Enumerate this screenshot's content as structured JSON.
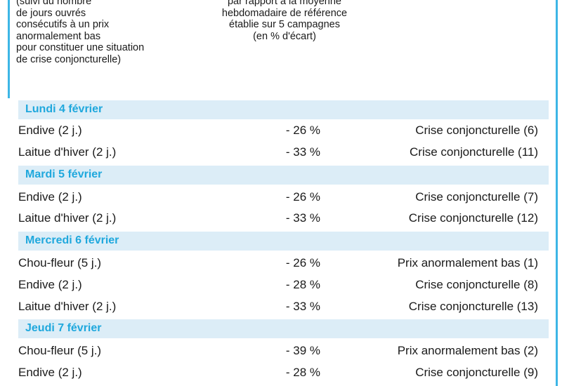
{
  "header": {
    "left_lines": [
      "(suivi du nombre",
      "de jours ouvrés",
      "consécutifs à un prix",
      "anormalement bas",
      "pour constituer une situation",
      "de crise conjoncturelle)"
    ],
    "middle_lines": [
      "par rapport à la moyenne",
      "hebdomadaire de référence",
      "établie sur 5 campagnes",
      "(en % d'écart)"
    ]
  },
  "days": [
    {
      "label": "Lundi 4 février",
      "rows": [
        {
          "product": "Endive (2 j.)",
          "pct": "- 26 %",
          "status": "Crise conjoncturelle (6)"
        },
        {
          "product": "Laitue d'hiver (2 j.)",
          "pct": "- 33 %",
          "status": "Crise conjoncturelle (11)"
        }
      ]
    },
    {
      "label": "Mardi 5 février",
      "rows": [
        {
          "product": "Endive (2 j.)",
          "pct": "- 26 %",
          "status": "Crise conjoncturelle (7)"
        },
        {
          "product": "Laitue d'hiver (2 j.)",
          "pct": "- 33 %",
          "status": "Crise conjoncturelle (12)"
        }
      ]
    },
    {
      "label": "Mercredi 6 février",
      "rows": [
        {
          "product": "Chou-fleur (5 j.)",
          "pct": "- 26 %",
          "status": "Prix anormalement bas (1)"
        },
        {
          "product": "Endive (2 j.)",
          "pct": "- 28 %",
          "status": "Crise conjoncturelle (8)"
        },
        {
          "product": "Laitue d'hiver (2 j.)",
          "pct": "- 33 %",
          "status": "Crise conjoncturelle (13)"
        }
      ]
    },
    {
      "label": "Jeudi 7 février",
      "rows": [
        {
          "product": "Chou-fleur (5 j.)",
          "pct": "- 39 %",
          "status": "Prix anormalement bas (2)"
        },
        {
          "product": "Endive (2 j.)",
          "pct": "- 28 %",
          "status": "Crise conjoncturelle (9)"
        }
      ]
    }
  ],
  "colors": {
    "accent": "#3db6e6",
    "day_label": "#1fa8dd",
    "band": "#dcedf7"
  }
}
